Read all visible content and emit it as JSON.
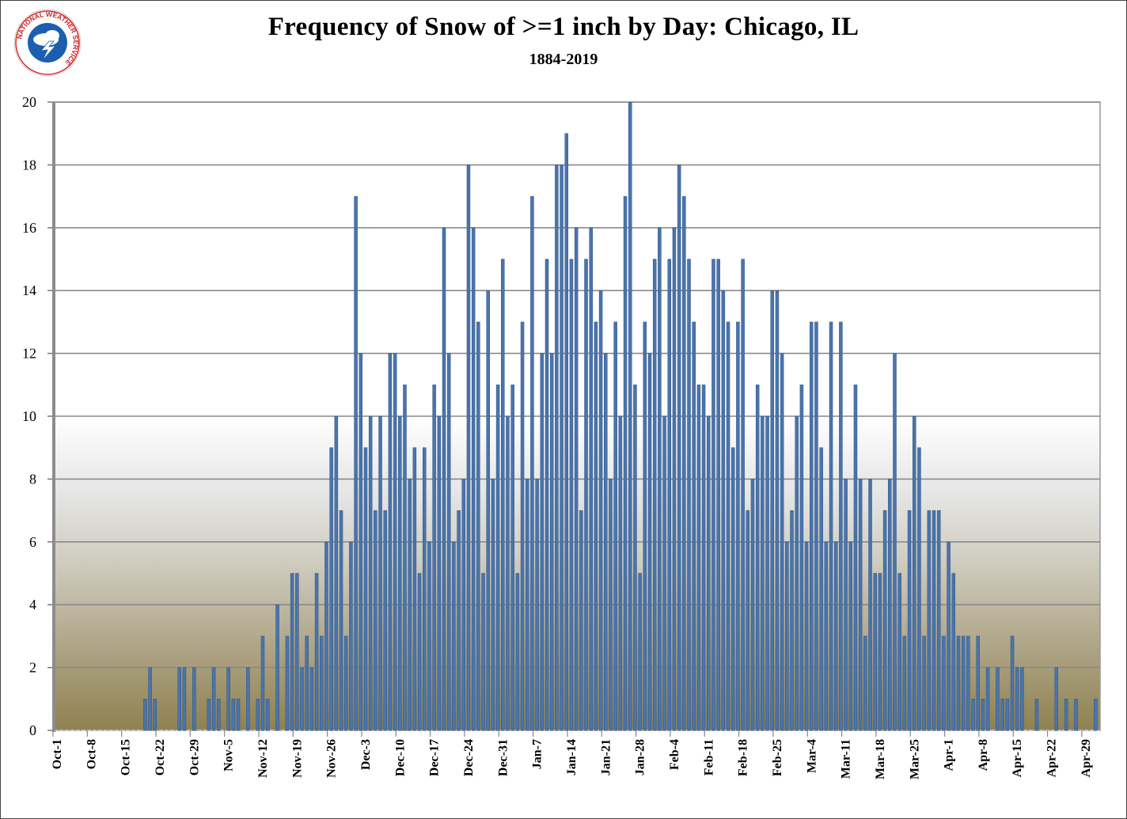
{
  "logo": {
    "text": "NATIONAL WEATHER SERVICE"
  },
  "chart_data": {
    "type": "bar",
    "title": "Frequency of  Snow of  >=1 inch by Day:  Chicago, IL",
    "subtitle": "1884-2019",
    "xlabel": "",
    "ylabel": "",
    "ylim": [
      0,
      20
    ],
    "yticks": [
      "0",
      "2",
      "4",
      "6",
      "8",
      "10",
      "12",
      "14",
      "16",
      "18",
      "20"
    ],
    "grid": true,
    "legend": "none",
    "x_start": "Oct-1",
    "x_end": "Apr-30",
    "xtick_every_days": 7,
    "xticks": [
      "Oct-1",
      "Oct-8",
      "Oct-15",
      "Oct-22",
      "Oct-29",
      "Nov-5",
      "Nov-12",
      "Nov-19",
      "Nov-26",
      "Dec-3",
      "Dec-10",
      "Dec-17",
      "Dec-24",
      "Dec-31",
      "Jan-7",
      "Jan-14",
      "Jan-21",
      "Jan-28",
      "Feb-4",
      "Feb-11",
      "Feb-18",
      "Feb-25",
      "Mar-4",
      "Mar-11",
      "Mar-18",
      "Mar-25",
      "Apr-1",
      "Apr-8",
      "Apr-15",
      "Apr-22",
      "Apr-29"
    ],
    "values": [
      0,
      0,
      0,
      0,
      0,
      0,
      0,
      0,
      0,
      0,
      0,
      0,
      0,
      0,
      0,
      0,
      0,
      0,
      1,
      2,
      1,
      0,
      0,
      0,
      0,
      2,
      2,
      0,
      2,
      0,
      0,
      1,
      2,
      1,
      0,
      2,
      1,
      1,
      0,
      2,
      0,
      1,
      3,
      1,
      0,
      4,
      0,
      3,
      5,
      5,
      2,
      3,
      2,
      5,
      3,
      6,
      9,
      10,
      7,
      3,
      6,
      17,
      12,
      9,
      10,
      7,
      10,
      7,
      12,
      12,
      10,
      11,
      8,
      9,
      5,
      9,
      6,
      11,
      10,
      16,
      12,
      6,
      7,
      8,
      18,
      16,
      13,
      5,
      14,
      8,
      11,
      15,
      10,
      11,
      5,
      13,
      8,
      17,
      8,
      12,
      15,
      12,
      18,
      18,
      19,
      15,
      16,
      7,
      15,
      16,
      13,
      14,
      12,
      8,
      13,
      10,
      17,
      20,
      11,
      5,
      13,
      12,
      15,
      16,
      10,
      15,
      16,
      18,
      17,
      15,
      13,
      11,
      11,
      10,
      15,
      15,
      14,
      13,
      9,
      13,
      15,
      7,
      8,
      11,
      10,
      10,
      14,
      14,
      12,
      6,
      7,
      10,
      11,
      6,
      13,
      13,
      9,
      6,
      13,
      6,
      13,
      8,
      6,
      11,
      8,
      3,
      8,
      5,
      5,
      7,
      8,
      12,
      5,
      3,
      7,
      10,
      9,
      3,
      7,
      7,
      7,
      3,
      6,
      5,
      3,
      3,
      3,
      1,
      3,
      1,
      2,
      0,
      2,
      1,
      1,
      3,
      2,
      2,
      0,
      0,
      1,
      0,
      0,
      0,
      2,
      0,
      1,
      0,
      1,
      0,
      0,
      0,
      1
    ],
    "bar_color": "#4a74ab"
  }
}
